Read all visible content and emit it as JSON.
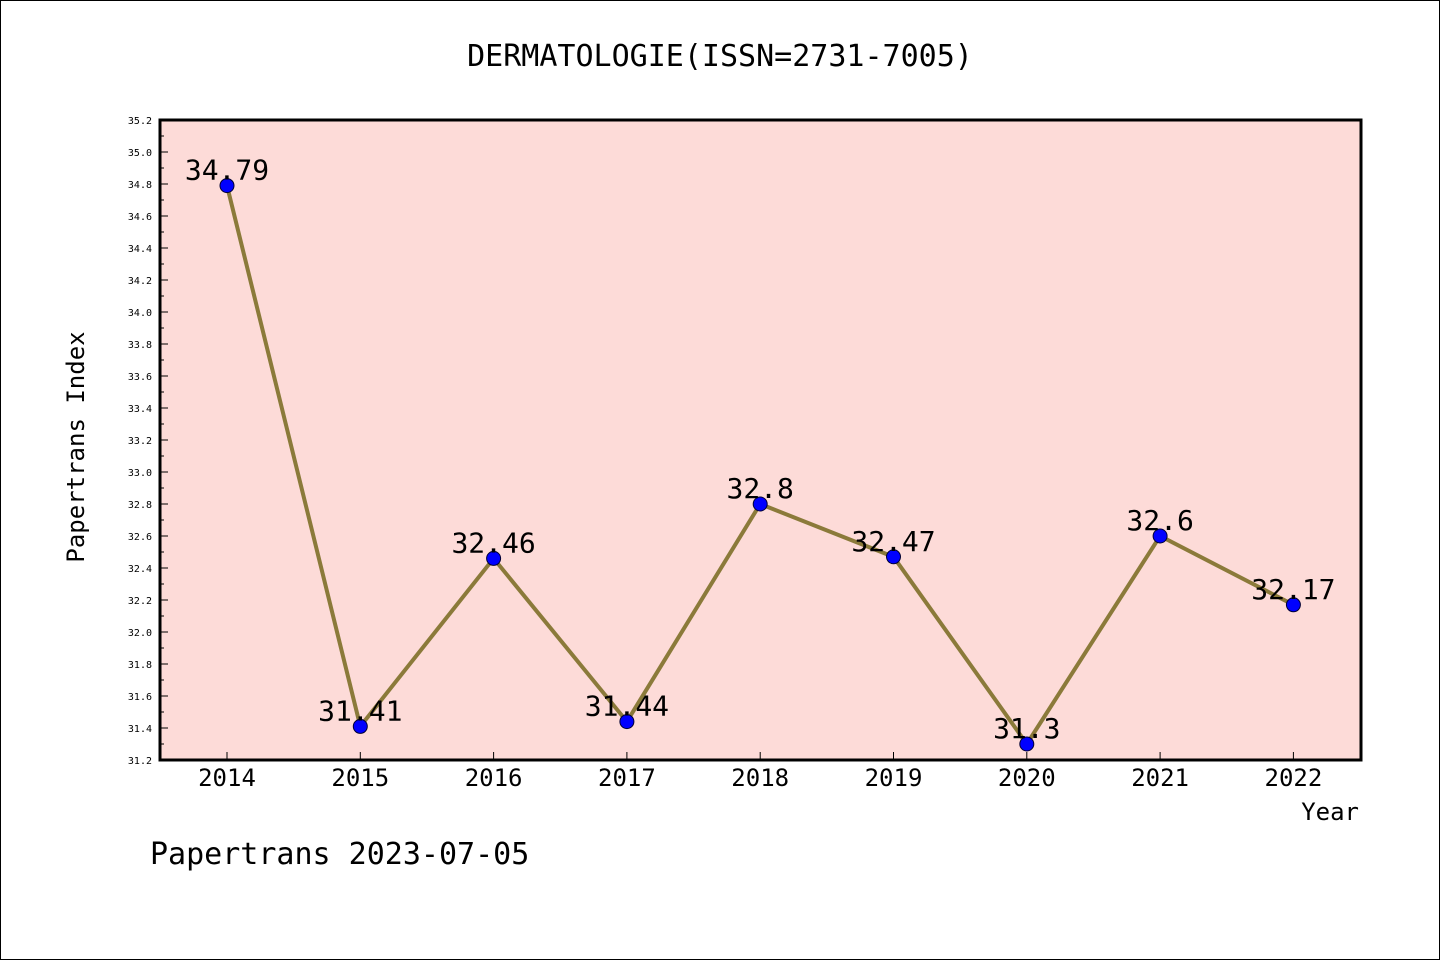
{
  "chart_data": {
    "type": "line",
    "title": "DERMATOLOGIE(ISSN=2731-7005)",
    "xlabel": "Year",
    "ylabel": "Papertrans Index",
    "categories": [
      "2014",
      "2015",
      "2016",
      "2017",
      "2018",
      "2019",
      "2020",
      "2021",
      "2022"
    ],
    "series": [
      {
        "values": [
          34.79,
          31.41,
          32.46,
          31.44,
          32.8,
          32.47,
          31.3,
          32.6,
          32.17
        ],
        "labels": [
          "34.79",
          "31.41",
          "32.46",
          "31.44",
          "32.8",
          "32.47",
          "31.3",
          "32.6",
          "32.17"
        ]
      }
    ],
    "ylim": [
      31.2,
      35.2
    ],
    "yticks": [
      "31.2",
      "31.4",
      "31.6",
      "31.8",
      "32.0",
      "32.2",
      "32.4",
      "32.6",
      "32.8",
      "33.0",
      "33.2",
      "33.4",
      "33.6",
      "33.8",
      "34.0",
      "34.2",
      "34.4",
      "34.6",
      "34.8",
      "35.0",
      "35.2"
    ],
    "grid": false,
    "colors": {
      "plot_background": "#fddbd8",
      "line": "#8b7a3a",
      "marker": "#0000ff"
    }
  },
  "footer": "Papertrans 2023-07-05"
}
